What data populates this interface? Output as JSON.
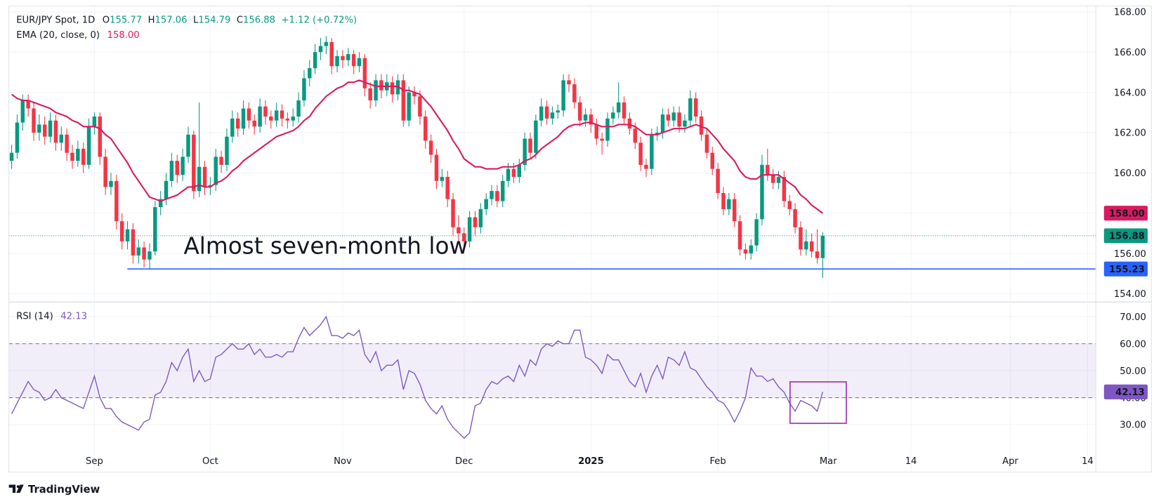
{
  "chart_data": {
    "type": "candlestick",
    "symbol": "EUR/JPY Spot, 1D",
    "ohlc_labels": [
      "O",
      "H",
      "L",
      "C"
    ],
    "change": "+1.12 (+0.72%)",
    "up_color": "#089981",
    "down_color": "#f23645",
    "candles": [
      [
        160.6,
        161.4,
        160.2,
        161.0
      ],
      [
        161.0,
        162.9,
        160.7,
        162.5
      ],
      [
        162.5,
        163.9,
        162.1,
        163.6
      ],
      [
        163.6,
        163.9,
        162.8,
        163.2
      ],
      [
        163.2,
        163.5,
        161.6,
        162.0
      ],
      [
        162.0,
        162.9,
        161.6,
        162.4
      ],
      [
        162.4,
        162.8,
        161.4,
        161.8
      ],
      [
        161.8,
        163.0,
        161.5,
        162.6
      ],
      [
        162.6,
        162.9,
        161.1,
        161.5
      ],
      [
        161.5,
        162.3,
        161.1,
        161.9
      ],
      [
        161.9,
        162.2,
        160.6,
        161.0
      ],
      [
        161.0,
        161.4,
        160.2,
        160.6
      ],
      [
        160.6,
        161.6,
        160.3,
        161.2
      ],
      [
        161.2,
        161.5,
        160.0,
        160.4
      ],
      [
        160.4,
        162.7,
        160.2,
        162.3
      ],
      [
        162.3,
        163.0,
        161.9,
        162.8
      ],
      [
        162.8,
        163.0,
        160.4,
        160.8
      ],
      [
        160.8,
        161.2,
        158.9,
        159.3
      ],
      [
        159.3,
        160.0,
        158.9,
        159.6
      ],
      [
        159.6,
        159.9,
        157.2,
        157.6
      ],
      [
        157.6,
        158.0,
        156.2,
        156.6
      ],
      [
        156.6,
        157.6,
        156.2,
        157.2
      ],
      [
        157.2,
        157.5,
        155.5,
        155.9
      ],
      [
        155.9,
        156.7,
        155.5,
        156.3
      ],
      [
        156.3,
        156.6,
        155.3,
        155.7
      ],
      [
        155.7,
        156.5,
        155.23,
        156.1
      ],
      [
        156.1,
        158.6,
        155.9,
        158.3
      ],
      [
        158.3,
        159.1,
        157.9,
        158.7
      ],
      [
        158.7,
        160.0,
        158.4,
        159.6
      ],
      [
        159.6,
        161.0,
        159.3,
        160.6
      ],
      [
        160.6,
        160.9,
        159.5,
        159.9
      ],
      [
        159.9,
        161.2,
        159.6,
        160.8
      ],
      [
        160.8,
        162.3,
        160.5,
        161.9
      ],
      [
        161.9,
        162.1,
        158.7,
        159.1
      ],
      [
        159.1,
        163.5,
        158.8,
        160.3
      ],
      [
        160.3,
        160.6,
        158.9,
        159.3
      ],
      [
        159.3,
        159.8,
        158.9,
        159.4
      ],
      [
        159.4,
        161.2,
        159.1,
        160.8
      ],
      [
        160.8,
        161.1,
        160.0,
        160.4
      ],
      [
        160.4,
        162.2,
        160.1,
        161.8
      ],
      [
        161.8,
        163.1,
        161.5,
        162.7
      ],
      [
        162.7,
        163.0,
        161.8,
        162.2
      ],
      [
        162.2,
        163.6,
        161.9,
        163.2
      ],
      [
        163.2,
        163.5,
        162.2,
        162.6
      ],
      [
        162.6,
        162.9,
        161.9,
        162.3
      ],
      [
        162.3,
        163.7,
        162.0,
        163.3
      ],
      [
        163.3,
        163.6,
        162.4,
        162.8
      ],
      [
        162.8,
        163.1,
        162.2,
        162.6
      ],
      [
        162.6,
        163.5,
        162.3,
        163.1
      ],
      [
        163.1,
        163.4,
        162.3,
        162.7
      ],
      [
        162.7,
        163.0,
        162.2,
        162.6
      ],
      [
        162.6,
        163.2,
        162.3,
        162.8
      ],
      [
        162.8,
        164.0,
        162.5,
        163.6
      ],
      [
        163.6,
        165.1,
        163.3,
        164.7
      ],
      [
        164.7,
        165.6,
        164.3,
        165.2
      ],
      [
        165.2,
        166.4,
        164.9,
        166.0
      ],
      [
        166.0,
        166.7,
        165.6,
        166.3
      ],
      [
        166.3,
        166.8,
        165.9,
        166.5
      ],
      [
        166.5,
        166.7,
        164.9,
        165.3
      ],
      [
        165.3,
        166.1,
        165.0,
        165.8
      ],
      [
        165.8,
        166.1,
        165.2,
        165.6
      ],
      [
        165.6,
        166.2,
        165.3,
        165.9
      ],
      [
        165.9,
        166.1,
        164.9,
        165.3
      ],
      [
        165.3,
        166.0,
        165.0,
        165.7
      ],
      [
        165.7,
        165.9,
        163.8,
        164.2
      ],
      [
        164.2,
        164.5,
        163.2,
        163.6
      ],
      [
        163.6,
        164.9,
        163.3,
        164.6
      ],
      [
        164.6,
        164.9,
        163.7,
        164.1
      ],
      [
        164.1,
        164.9,
        163.8,
        164.5
      ],
      [
        164.5,
        164.8,
        163.5,
        163.9
      ],
      [
        163.9,
        164.9,
        163.6,
        164.6
      ],
      [
        164.6,
        164.9,
        162.3,
        162.6
      ],
      [
        162.6,
        164.3,
        162.3,
        164.0
      ],
      [
        164.0,
        164.3,
        163.4,
        163.8
      ],
      [
        163.8,
        164.1,
        162.4,
        162.8
      ],
      [
        162.8,
        163.1,
        161.2,
        161.6
      ],
      [
        161.6,
        161.9,
        160.5,
        160.9
      ],
      [
        160.9,
        161.2,
        159.2,
        159.6
      ],
      [
        159.6,
        160.2,
        159.3,
        159.8
      ],
      [
        159.8,
        160.1,
        158.3,
        158.7
      ],
      [
        158.7,
        159.0,
        156.9,
        157.3
      ],
      [
        157.3,
        157.9,
        156.6,
        157.0
      ],
      [
        157.0,
        157.3,
        156.2,
        156.6
      ],
      [
        156.6,
        158.1,
        156.3,
        157.8
      ],
      [
        157.8,
        158.1,
        156.9,
        157.3
      ],
      [
        157.3,
        158.5,
        157.0,
        158.2
      ],
      [
        158.2,
        159.0,
        157.9,
        158.7
      ],
      [
        158.7,
        159.4,
        158.4,
        159.1
      ],
      [
        159.1,
        159.4,
        158.3,
        158.6
      ],
      [
        158.6,
        159.9,
        158.3,
        159.6
      ],
      [
        159.6,
        160.5,
        159.3,
        160.2
      ],
      [
        160.2,
        160.5,
        159.5,
        159.8
      ],
      [
        159.8,
        160.7,
        159.5,
        160.4
      ],
      [
        160.4,
        162.0,
        160.1,
        161.7
      ],
      [
        161.7,
        162.0,
        160.7,
        161.0
      ],
      [
        161.0,
        162.9,
        160.7,
        162.6
      ],
      [
        162.6,
        163.7,
        162.3,
        163.3
      ],
      [
        163.3,
        163.6,
        162.4,
        162.7
      ],
      [
        162.7,
        163.3,
        162.4,
        163.0
      ],
      [
        163.0,
        163.4,
        162.7,
        163.1
      ],
      [
        163.1,
        164.9,
        162.8,
        164.6
      ],
      [
        164.6,
        164.9,
        164.0,
        164.4
      ],
      [
        164.4,
        164.7,
        163.2,
        163.5
      ],
      [
        163.5,
        163.8,
        162.3,
        162.6
      ],
      [
        162.6,
        163.2,
        162.3,
        162.9
      ],
      [
        162.9,
        163.2,
        162.0,
        162.4
      ],
      [
        162.4,
        162.7,
        161.4,
        161.7
      ],
      [
        161.7,
        162.0,
        160.9,
        161.6
      ],
      [
        161.6,
        163.0,
        161.3,
        162.7
      ],
      [
        162.7,
        163.3,
        162.4,
        163.0
      ],
      [
        163.0,
        164.5,
        162.7,
        163.5
      ],
      [
        163.5,
        163.8,
        162.4,
        162.7
      ],
      [
        162.7,
        163.0,
        161.9,
        162.2
      ],
      [
        162.2,
        162.5,
        161.2,
        161.5
      ],
      [
        161.5,
        161.8,
        160.1,
        160.4
      ],
      [
        160.4,
        160.7,
        159.8,
        160.2
      ],
      [
        160.2,
        162.2,
        159.9,
        161.9
      ],
      [
        161.9,
        162.3,
        161.6,
        162.0
      ],
      [
        162.0,
        163.2,
        161.7,
        162.9
      ],
      [
        162.9,
        163.2,
        162.3,
        162.6
      ],
      [
        162.6,
        163.3,
        162.3,
        163.0
      ],
      [
        163.0,
        163.3,
        162.0,
        162.3
      ],
      [
        162.3,
        162.9,
        162.0,
        162.6
      ],
      [
        162.6,
        164.1,
        162.3,
        163.7
      ],
      [
        163.7,
        164.0,
        162.5,
        162.8
      ],
      [
        162.8,
        163.1,
        161.6,
        161.9
      ],
      [
        161.9,
        162.2,
        160.7,
        161.0
      ],
      [
        161.0,
        161.3,
        159.9,
        160.2
      ],
      [
        160.2,
        160.5,
        158.7,
        159.0
      ],
      [
        159.0,
        159.3,
        157.9,
        158.2
      ],
      [
        158.2,
        159.0,
        157.9,
        158.7
      ],
      [
        158.7,
        159.0,
        157.3,
        157.6
      ],
      [
        157.6,
        157.9,
        155.9,
        156.2
      ],
      [
        156.2,
        156.5,
        155.7,
        156.0
      ],
      [
        156.0,
        156.7,
        155.7,
        156.4
      ],
      [
        156.4,
        158.0,
        156.1,
        157.7
      ],
      [
        157.7,
        160.9,
        157.4,
        160.4
      ],
      [
        160.4,
        161.2,
        159.6,
        159.9
      ],
      [
        159.9,
        160.2,
        159.2,
        159.5
      ],
      [
        159.5,
        160.1,
        159.2,
        159.8
      ],
      [
        159.8,
        160.1,
        158.3,
        158.6
      ],
      [
        158.6,
        158.9,
        157.9,
        158.2
      ],
      [
        158.2,
        158.5,
        157.0,
        157.3
      ],
      [
        157.3,
        157.6,
        155.9,
        156.2
      ],
      [
        156.2,
        157.2,
        155.9,
        156.6
      ],
      [
        156.6,
        157.0,
        155.8,
        156.1
      ],
      [
        156.1,
        157.2,
        155.5,
        155.77
      ],
      [
        155.77,
        157.06,
        154.79,
        156.88
      ]
    ],
    "ema": {
      "name": "EMA (20, close, 0)",
      "color": "#d81b60",
      "last_label": "158.00",
      "values": [
        163.9,
        163.7,
        163.6,
        163.6,
        163.5,
        163.4,
        163.3,
        163.2,
        163.0,
        162.9,
        162.8,
        162.6,
        162.5,
        162.3,
        162.3,
        162.3,
        162.2,
        161.9,
        161.7,
        161.3,
        160.9,
        160.5,
        160.0,
        159.6,
        159.2,
        158.8,
        158.7,
        158.6,
        158.7,
        158.8,
        158.9,
        159.1,
        159.3,
        159.3,
        159.4,
        159.3,
        159.3,
        159.5,
        159.6,
        159.8,
        160.1,
        160.3,
        160.6,
        160.8,
        161.0,
        161.2,
        161.4,
        161.6,
        161.8,
        161.9,
        162.0,
        162.1,
        162.3,
        162.6,
        162.8,
        163.2,
        163.5,
        163.8,
        164.0,
        164.2,
        164.3,
        164.5,
        164.5,
        164.6,
        164.5,
        164.4,
        164.3,
        164.3,
        164.3,
        164.3,
        164.3,
        164.1,
        164.1,
        164.0,
        163.9,
        163.6,
        163.3,
        162.9,
        162.5,
        162.1,
        161.6,
        161.2,
        160.7,
        160.5,
        160.3,
        160.3,
        160.2,
        160.2,
        160.2,
        160.3,
        160.3,
        160.3,
        160.4,
        160.6,
        160.7,
        160.9,
        161.2,
        161.4,
        161.6,
        161.8,
        162.1,
        162.3,
        162.4,
        162.4,
        162.5,
        162.5,
        162.4,
        162.3,
        162.3,
        162.3,
        162.4,
        162.4,
        162.4,
        162.3,
        162.1,
        161.9,
        161.9,
        161.9,
        162.0,
        162.1,
        162.2,
        162.2,
        162.2,
        162.3,
        162.4,
        162.3,
        162.2,
        161.9,
        161.6,
        161.2,
        160.9,
        160.6,
        160.1,
        159.8,
        159.7,
        159.7,
        159.9,
        159.9,
        159.9,
        159.9,
        159.7,
        159.5,
        159.3,
        158.9,
        158.7,
        158.4,
        158.2,
        158.0
      ]
    },
    "support": {
      "value": 155.23,
      "color": "#2962ff",
      "annotation": "Almost seven-month low"
    },
    "xlim": [
      -0.5,
      196.5
    ],
    "xticks": [
      {
        "value": 15,
        "label": "Sep"
      },
      {
        "value": 36,
        "label": "Oct"
      },
      {
        "value": 60,
        "label": "Nov"
      },
      {
        "value": 82,
        "label": "Dec"
      },
      {
        "value": 105,
        "label": "2025"
      },
      {
        "value": 128,
        "label": "Feb"
      },
      {
        "value": 148,
        "label": "Mar"
      },
      {
        "value": 163,
        "label": "14"
      },
      {
        "value": 181,
        "label": "Apr"
      },
      {
        "value": 195,
        "label": "14"
      }
    ],
    "ylim": [
      153.63,
      168.29
    ],
    "yticks": [
      {
        "value": 154,
        "label": "154.00"
      },
      {
        "value": 156,
        "label": "156.00"
      },
      {
        "value": 158,
        "label": "158.00"
      },
      {
        "value": 160,
        "label": "160.00"
      },
      {
        "value": 162,
        "label": "162.00"
      },
      {
        "value": 164,
        "label": "164.00"
      },
      {
        "value": 166,
        "label": "166.00"
      },
      {
        "value": 168,
        "label": "168.00"
      }
    ],
    "grid": true,
    "rsi": {
      "type": "line",
      "name": "RSI (14)",
      "color": "#7e57c2",
      "band": [
        40,
        60
      ],
      "ylim": [
        12.7,
        74.9
      ],
      "yticks": [
        {
          "value": 30,
          "label": "30.00"
        },
        {
          "value": 40,
          "label": "40.00"
        },
        {
          "value": 50,
          "label": "50.00"
        },
        {
          "value": 60,
          "label": "60.00"
        },
        {
          "value": 70,
          "label": "70.00"
        }
      ],
      "values": [
        34,
        38,
        42,
        46,
        43,
        42,
        39,
        40,
        43,
        40,
        39,
        38,
        37,
        36,
        42,
        48,
        40,
        36,
        36,
        33,
        31,
        30,
        29,
        28,
        31,
        32,
        41,
        42,
        46,
        53,
        50,
        55,
        58,
        46,
        50,
        46,
        47,
        55,
        56,
        58,
        60,
        58,
        58,
        60,
        56,
        58,
        55,
        55,
        56,
        55,
        57,
        57,
        62,
        66,
        63,
        65,
        67,
        70,
        63,
        63,
        62,
        64,
        63,
        65,
        56,
        53,
        57,
        50,
        52,
        52,
        54,
        43,
        50,
        49,
        45,
        39,
        36,
        34,
        37,
        32,
        29,
        27,
        25,
        27,
        37,
        38,
        43,
        46,
        45,
        47,
        48,
        46,
        52,
        48,
        54,
        52,
        58,
        60,
        59,
        61,
        60,
        60,
        65,
        65,
        55,
        54,
        52,
        49,
        56,
        54,
        54,
        50,
        46,
        44,
        49,
        42,
        48,
        52,
        47,
        55,
        54,
        52,
        57,
        51,
        50,
        47,
        44,
        42,
        39,
        38,
        35,
        31,
        35,
        40,
        51,
        48,
        48,
        46,
        47,
        44,
        42,
        38,
        35,
        39,
        38,
        37,
        35,
        42.13
      ]
    },
    "footer": "TradingView"
  }
}
